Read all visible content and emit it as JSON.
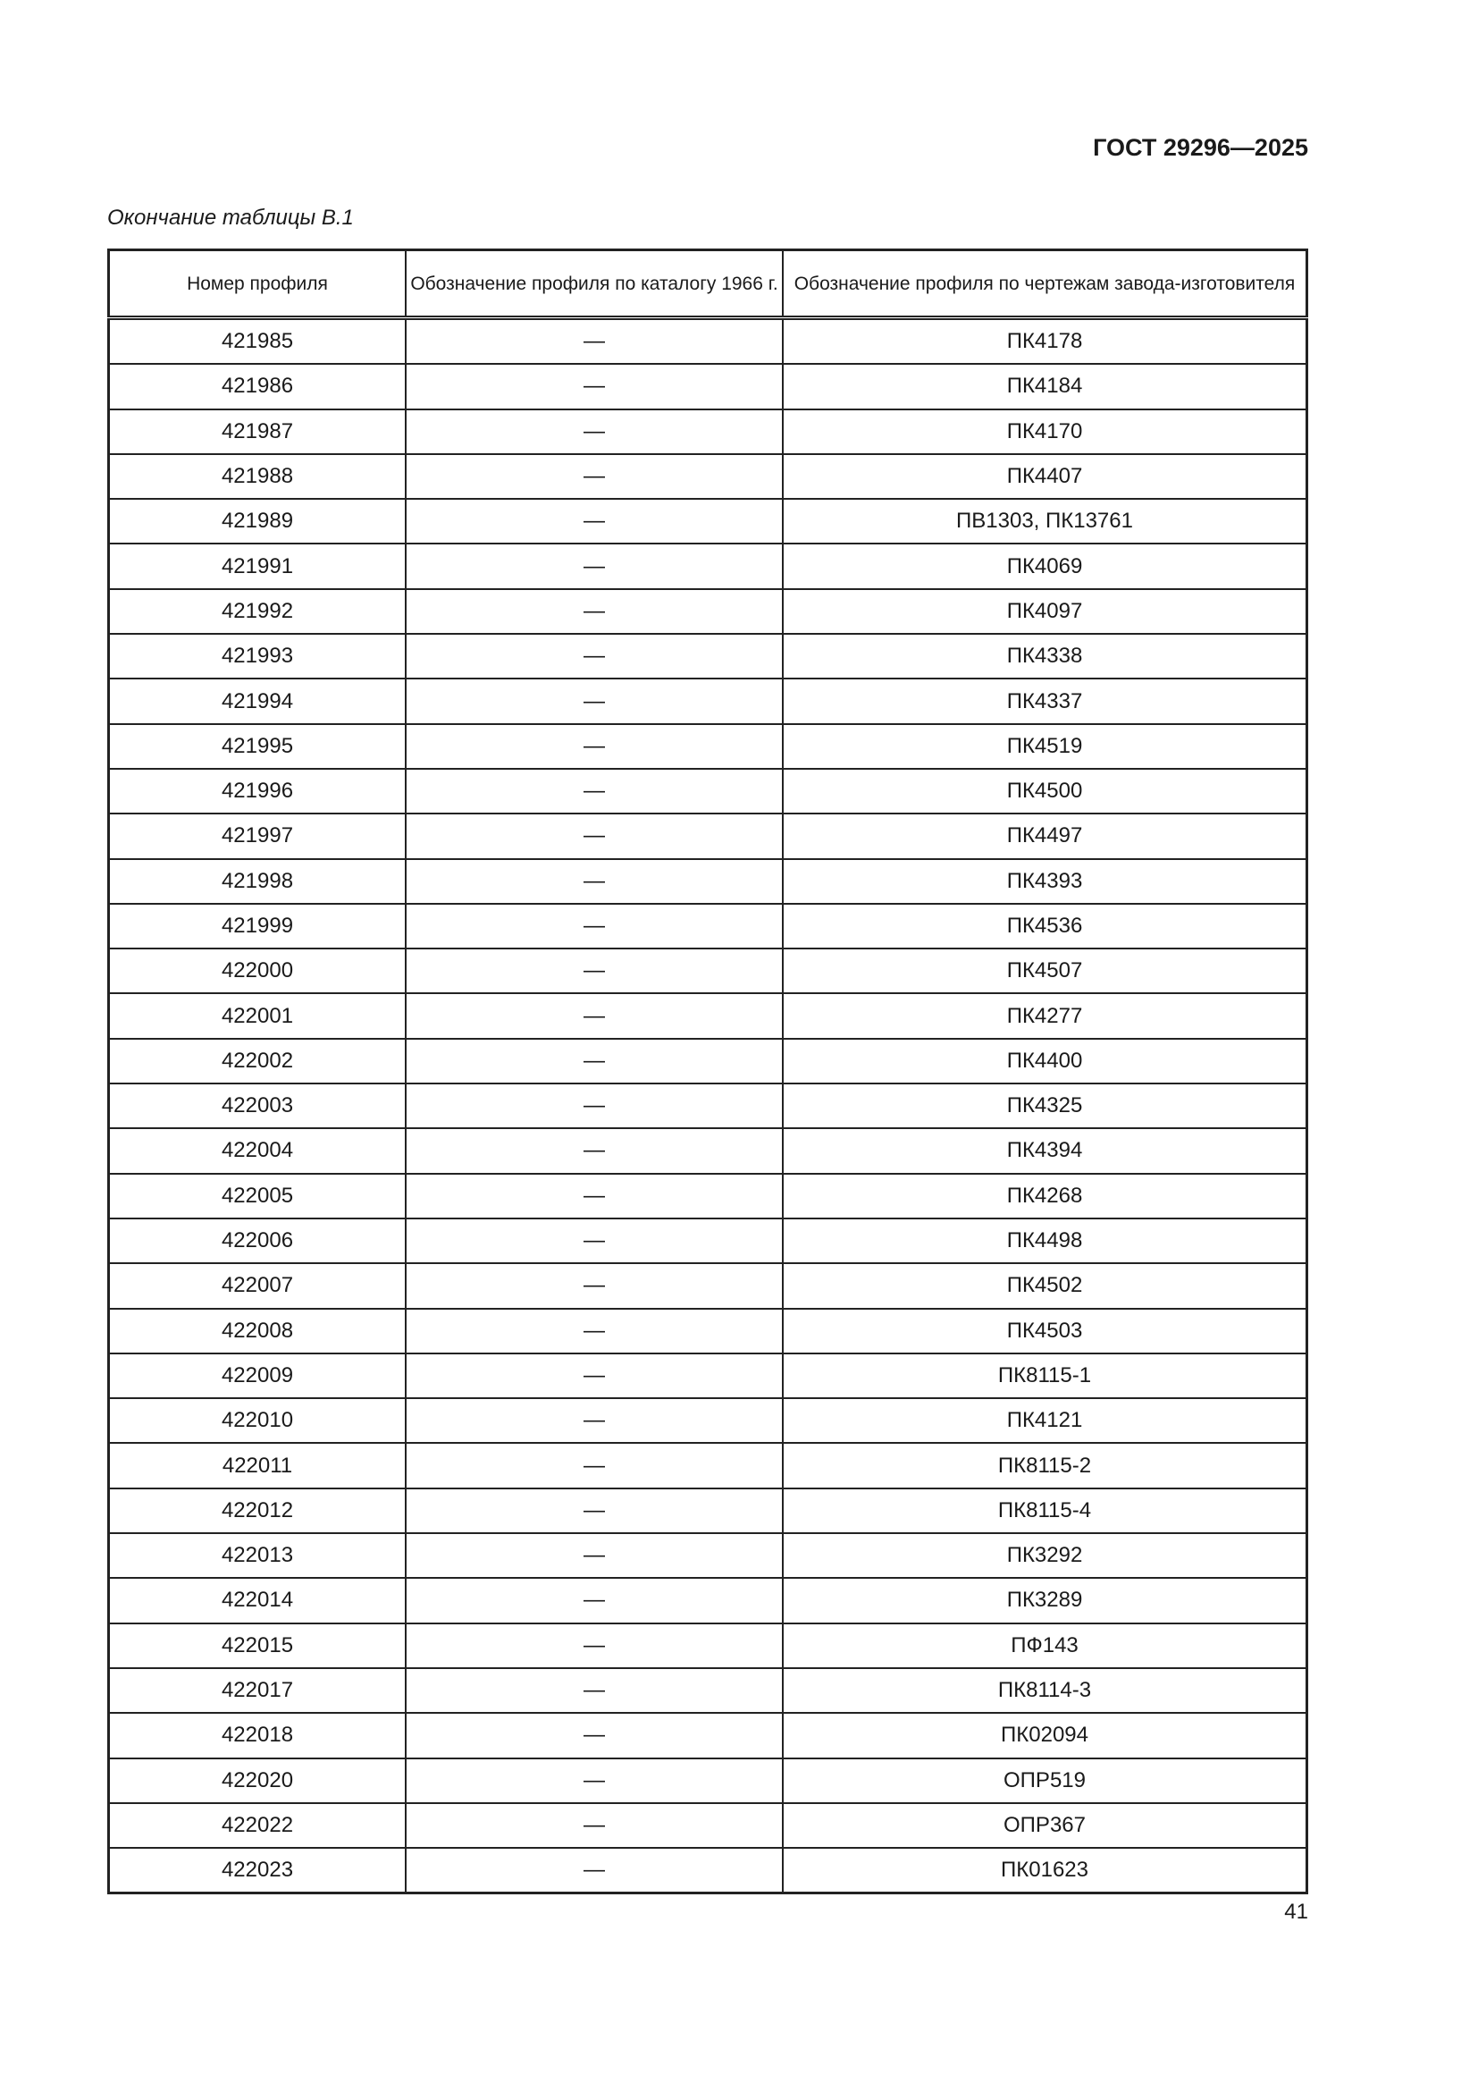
{
  "header": {
    "standard": "ГОСТ 29296—2025"
  },
  "caption": "Окончание таблицы В.1",
  "table": {
    "columns": [
      "Номер профиля",
      "Обозначение профиля по каталогу 1966 г.",
      "Обозначение профиля по чертежам завода-изготовителя"
    ],
    "rows": [
      [
        "421985",
        "—",
        "ПК4178"
      ],
      [
        "421986",
        "—",
        "ПК4184"
      ],
      [
        "421987",
        "—",
        "ПК4170"
      ],
      [
        "421988",
        "—",
        "ПК4407"
      ],
      [
        "421989",
        "—",
        "ПВ1303, ПК13761"
      ],
      [
        "421991",
        "—",
        "ПК4069"
      ],
      [
        "421992",
        "—",
        "ПК4097"
      ],
      [
        "421993",
        "—",
        "ПК4338"
      ],
      [
        "421994",
        "—",
        "ПК4337"
      ],
      [
        "421995",
        "—",
        "ПК4519"
      ],
      [
        "421996",
        "—",
        "ПК4500"
      ],
      [
        "421997",
        "—",
        "ПК4497"
      ],
      [
        "421998",
        "—",
        "ПК4393"
      ],
      [
        "421999",
        "—",
        "ПК4536"
      ],
      [
        "422000",
        "—",
        "ПК4507"
      ],
      [
        "422001",
        "—",
        "ПК4277"
      ],
      [
        "422002",
        "—",
        "ПК4400"
      ],
      [
        "422003",
        "—",
        "ПК4325"
      ],
      [
        "422004",
        "—",
        "ПК4394"
      ],
      [
        "422005",
        "—",
        "ПК4268"
      ],
      [
        "422006",
        "—",
        "ПК4498"
      ],
      [
        "422007",
        "—",
        "ПК4502"
      ],
      [
        "422008",
        "—",
        "ПК4503"
      ],
      [
        "422009",
        "—",
        "ПК8115-1"
      ],
      [
        "422010",
        "—",
        "ПК4121"
      ],
      [
        "422011",
        "—",
        "ПК8115-2"
      ],
      [
        "422012",
        "—",
        "ПК8115-4"
      ],
      [
        "422013",
        "—",
        "ПК3292"
      ],
      [
        "422014",
        "—",
        "ПК3289"
      ],
      [
        "422015",
        "—",
        "ПФ143"
      ],
      [
        "422017",
        "—",
        "ПК8114-3"
      ],
      [
        "422018",
        "—",
        "ПК02094"
      ],
      [
        "422020",
        "—",
        "ОПР519"
      ],
      [
        "422022",
        "—",
        "ОПР367"
      ],
      [
        "422023",
        "—",
        "ПК01623"
      ]
    ]
  },
  "page_number": "41"
}
